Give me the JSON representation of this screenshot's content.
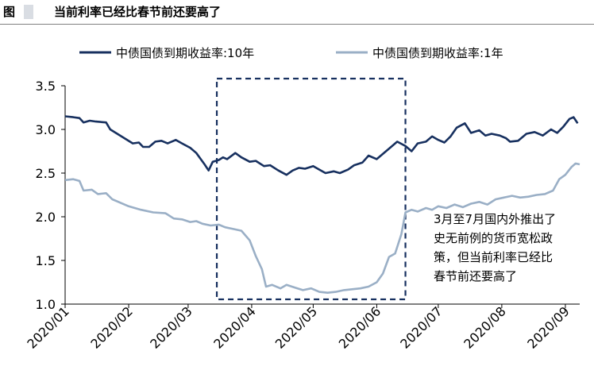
{
  "figure": {
    "label": "图",
    "title": "当前利率已经比春节前还要高了"
  },
  "colors": {
    "series_10y": "#17305f",
    "series_1y": "#9aafc6",
    "box": "#17305f"
  },
  "annotation": {
    "lines": [
      "3月至7月国内外推出了",
      "史无前例的货币宽松政",
      "策，但当前利率已经比",
      "春节前还要高了"
    ]
  },
  "chart_data": {
    "type": "line",
    "title": "",
    "xlabel": "",
    "ylabel": "",
    "x_ticks": [
      "2020/01",
      "2020/02",
      "2020/03",
      "2020/04",
      "2020/05",
      "2020/06",
      "2020/07",
      "2020/08",
      "2020/09"
    ],
    "y_ticks": [
      "1.0",
      "1.5",
      "2.0",
      "2.5",
      "3.0",
      "3.5"
    ],
    "ylim": [
      1.0,
      3.5
    ],
    "xlim": [
      "2020-01-01",
      "2020-09-08"
    ],
    "grid": false,
    "legend_position": "top",
    "highlight_range": [
      "2020-03-15",
      "2020-06-15"
    ],
    "series": [
      {
        "name": "中债国债到期收益率:10年",
        "points": [
          [
            "2020-01-01",
            3.15
          ],
          [
            "2020-01-05",
            3.14
          ],
          [
            "2020-01-08",
            3.13
          ],
          [
            "2020-01-10",
            3.08
          ],
          [
            "2020-01-13",
            3.1
          ],
          [
            "2020-01-16",
            3.09
          ],
          [
            "2020-01-21",
            3.08
          ],
          [
            "2020-01-23",
            3.0
          ],
          [
            "2020-02-03",
            2.84
          ],
          [
            "2020-02-06",
            2.85
          ],
          [
            "2020-02-08",
            2.8
          ],
          [
            "2020-02-11",
            2.8
          ],
          [
            "2020-02-14",
            2.86
          ],
          [
            "2020-02-17",
            2.87
          ],
          [
            "2020-02-20",
            2.84
          ],
          [
            "2020-02-24",
            2.88
          ],
          [
            "2020-02-27",
            2.84
          ],
          [
            "2020-03-02",
            2.79
          ],
          [
            "2020-03-05",
            2.73
          ],
          [
            "2020-03-09",
            2.6
          ],
          [
            "2020-03-11",
            2.53
          ],
          [
            "2020-03-13",
            2.63
          ],
          [
            "2020-03-16",
            2.65
          ],
          [
            "2020-03-18",
            2.68
          ],
          [
            "2020-03-20",
            2.66
          ],
          [
            "2020-03-24",
            2.73
          ],
          [
            "2020-03-27",
            2.68
          ],
          [
            "2020-03-31",
            2.63
          ],
          [
            "2020-04-03",
            2.64
          ],
          [
            "2020-04-07",
            2.58
          ],
          [
            "2020-04-10",
            2.59
          ],
          [
            "2020-04-14",
            2.53
          ],
          [
            "2020-04-18",
            2.48
          ],
          [
            "2020-04-21",
            2.53
          ],
          [
            "2020-04-24",
            2.56
          ],
          [
            "2020-04-27",
            2.55
          ],
          [
            "2020-05-01",
            2.58
          ],
          [
            "2020-05-04",
            2.54
          ],
          [
            "2020-05-07",
            2.5
          ],
          [
            "2020-05-11",
            2.52
          ],
          [
            "2020-05-14",
            2.5
          ],
          [
            "2020-05-18",
            2.54
          ],
          [
            "2020-05-21",
            2.59
          ],
          [
            "2020-05-25",
            2.62
          ],
          [
            "2020-05-28",
            2.7
          ],
          [
            "2020-06-01",
            2.66
          ],
          [
            "2020-06-04",
            2.72
          ],
          [
            "2020-06-08",
            2.8
          ],
          [
            "2020-06-11",
            2.86
          ],
          [
            "2020-06-15",
            2.81
          ],
          [
            "2020-06-18",
            2.75
          ],
          [
            "2020-06-21",
            2.84
          ],
          [
            "2020-06-25",
            2.86
          ],
          [
            "2020-06-28",
            2.92
          ],
          [
            "2020-07-01",
            2.88
          ],
          [
            "2020-07-04",
            2.85
          ],
          [
            "2020-07-07",
            2.92
          ],
          [
            "2020-07-10",
            3.02
          ],
          [
            "2020-07-14",
            3.07
          ],
          [
            "2020-07-17",
            2.96
          ],
          [
            "2020-07-21",
            2.99
          ],
          [
            "2020-07-24",
            2.93
          ],
          [
            "2020-07-27",
            2.95
          ],
          [
            "2020-07-31",
            2.93
          ],
          [
            "2020-08-03",
            2.9
          ],
          [
            "2020-08-05",
            2.86
          ],
          [
            "2020-08-09",
            2.87
          ],
          [
            "2020-08-13",
            2.95
          ],
          [
            "2020-08-17",
            2.97
          ],
          [
            "2020-08-21",
            2.93
          ],
          [
            "2020-08-25",
            3.0
          ],
          [
            "2020-08-28",
            2.96
          ],
          [
            "2020-08-31",
            3.03
          ],
          [
            "2020-09-03",
            3.12
          ],
          [
            "2020-09-05",
            3.14
          ],
          [
            "2020-09-07",
            3.07
          ]
        ]
      },
      {
        "name": "中债国债到期收益率:1年",
        "points": [
          [
            "2020-01-01",
            2.42
          ],
          [
            "2020-01-05",
            2.43
          ],
          [
            "2020-01-08",
            2.41
          ],
          [
            "2020-01-10",
            2.3
          ],
          [
            "2020-01-14",
            2.31
          ],
          [
            "2020-01-17",
            2.26
          ],
          [
            "2020-01-21",
            2.27
          ],
          [
            "2020-01-24",
            2.2
          ],
          [
            "2020-02-01",
            2.12
          ],
          [
            "2020-02-07",
            2.08
          ],
          [
            "2020-02-13",
            2.05
          ],
          [
            "2020-02-19",
            2.04
          ],
          [
            "2020-02-23",
            1.98
          ],
          [
            "2020-02-27",
            1.97
          ],
          [
            "2020-03-02",
            1.94
          ],
          [
            "2020-03-05",
            1.95
          ],
          [
            "2020-03-08",
            1.92
          ],
          [
            "2020-03-12",
            1.9
          ],
          [
            "2020-03-16",
            1.91
          ],
          [
            "2020-03-19",
            1.88
          ],
          [
            "2020-03-23",
            1.86
          ],
          [
            "2020-03-27",
            1.84
          ],
          [
            "2020-03-31",
            1.73
          ],
          [
            "2020-04-03",
            1.55
          ],
          [
            "2020-04-06",
            1.4
          ],
          [
            "2020-04-08",
            1.2
          ],
          [
            "2020-04-11",
            1.22
          ],
          [
            "2020-04-15",
            1.18
          ],
          [
            "2020-04-18",
            1.22
          ],
          [
            "2020-04-22",
            1.19
          ],
          [
            "2020-04-26",
            1.16
          ],
          [
            "2020-04-30",
            1.18
          ],
          [
            "2020-05-04",
            1.14
          ],
          [
            "2020-05-08",
            1.13
          ],
          [
            "2020-05-12",
            1.14
          ],
          [
            "2020-05-16",
            1.16
          ],
          [
            "2020-05-20",
            1.17
          ],
          [
            "2020-05-24",
            1.18
          ],
          [
            "2020-05-28",
            1.2
          ],
          [
            "2020-06-01",
            1.25
          ],
          [
            "2020-06-04",
            1.35
          ],
          [
            "2020-06-07",
            1.54
          ],
          [
            "2020-06-10",
            1.58
          ],
          [
            "2020-06-13",
            1.8
          ],
          [
            "2020-06-15",
            2.05
          ],
          [
            "2020-06-18",
            2.08
          ],
          [
            "2020-06-21",
            2.06
          ],
          [
            "2020-06-25",
            2.1
          ],
          [
            "2020-06-28",
            2.08
          ],
          [
            "2020-07-01",
            2.12
          ],
          [
            "2020-07-05",
            2.1
          ],
          [
            "2020-07-09",
            2.14
          ],
          [
            "2020-07-13",
            2.11
          ],
          [
            "2020-07-17",
            2.15
          ],
          [
            "2020-07-21",
            2.17
          ],
          [
            "2020-07-25",
            2.14
          ],
          [
            "2020-07-29",
            2.2
          ],
          [
            "2020-08-02",
            2.22
          ],
          [
            "2020-08-06",
            2.24
          ],
          [
            "2020-08-10",
            2.22
          ],
          [
            "2020-08-14",
            2.23
          ],
          [
            "2020-08-18",
            2.25
          ],
          [
            "2020-08-22",
            2.26
          ],
          [
            "2020-08-26",
            2.3
          ],
          [
            "2020-08-29",
            2.43
          ],
          [
            "2020-09-01",
            2.48
          ],
          [
            "2020-09-04",
            2.57
          ],
          [
            "2020-09-06",
            2.61
          ],
          [
            "2020-09-08",
            2.6
          ]
        ]
      }
    ]
  }
}
